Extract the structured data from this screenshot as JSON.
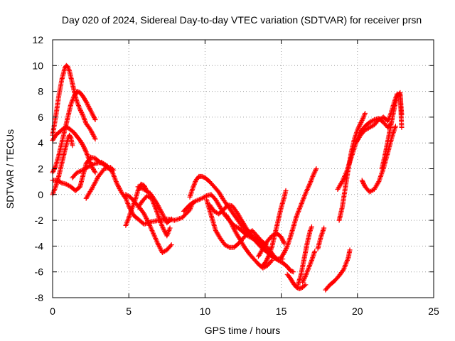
{
  "chart_data": {
    "type": "scatter",
    "title": "Day 020 of 2024, Sidereal Day-to-day VTEC variation (SDTVAR) for receiver prsn",
    "xlabel": "GPS time / hours",
    "ylabel": "SDTVAR / TECUs",
    "xlim": [
      0,
      25
    ],
    "ylim": [
      -8,
      12
    ],
    "x_ticks": [
      0,
      5,
      10,
      15,
      20,
      25
    ],
    "y_ticks": [
      -8,
      -6,
      -4,
      -2,
      0,
      2,
      4,
      6,
      8,
      10,
      12
    ],
    "grid": true,
    "marker": "+",
    "color": "#ff0000",
    "series": [
      {
        "name": "trace-1",
        "x": [
          0.0,
          0.2,
          0.4,
          0.6,
          0.8,
          0.9,
          1.0,
          1.1,
          1.2,
          1.3,
          1.4,
          1.5,
          1.6,
          1.7,
          1.8,
          2.0,
          2.2,
          2.5,
          2.8
        ],
        "y": [
          4.6,
          6.0,
          7.6,
          8.9,
          9.8,
          10.0,
          9.9,
          9.6,
          9.1,
          8.6,
          8.1,
          7.6,
          7.2,
          6.9,
          6.6,
          6.1,
          5.5,
          5.0,
          4.3
        ]
      },
      {
        "name": "trace-2",
        "x": [
          0.0,
          0.2,
          0.4,
          0.6,
          0.8,
          1.0,
          1.2,
          1.4,
          1.6,
          1.8,
          2.0,
          2.2,
          2.4,
          2.6,
          2.8
        ],
        "y": [
          4.2,
          4.6,
          4.8,
          5.0,
          5.2,
          5.2,
          5.0,
          4.8,
          4.5,
          4.2,
          3.8,
          3.3,
          2.7,
          2.1,
          1.7
        ]
      },
      {
        "name": "trace-3",
        "x": [
          0.0,
          0.2,
          0.4,
          0.6,
          0.8,
          1.0,
          1.2,
          1.4,
          1.6,
          1.8,
          2.0,
          2.2,
          2.5,
          2.8
        ],
        "y": [
          1.7,
          2.2,
          3.0,
          4.0,
          5.0,
          6.0,
          7.0,
          7.6,
          8.0,
          7.9,
          7.6,
          7.2,
          6.5,
          5.8
        ]
      },
      {
        "name": "trace-4",
        "x": [
          0.0,
          0.2,
          0.4,
          0.6,
          0.8,
          1.0,
          1.1,
          1.2,
          1.3
        ],
        "y": [
          0.0,
          0.6,
          1.4,
          2.4,
          3.4,
          4.3,
          4.6,
          4.4,
          3.8
        ]
      },
      {
        "name": "trace-5",
        "x": [
          0.0,
          0.3,
          0.6,
          0.9,
          1.2,
          1.5,
          1.8,
          2.0,
          2.2,
          2.5,
          2.8,
          3.1,
          3.4,
          3.7,
          3.9
        ],
        "y": [
          1.1,
          1.1,
          0.9,
          0.8,
          0.6,
          0.3,
          0.6,
          1.5,
          2.4,
          2.9,
          2.8,
          2.5,
          2.3,
          2.0,
          1.8
        ]
      },
      {
        "name": "trace-6",
        "x": [
          1.3,
          1.6,
          2.0,
          2.4,
          2.8,
          3.2,
          3.6,
          3.9
        ],
        "y": [
          1.3,
          1.7,
          1.9,
          2.2,
          2.4,
          2.5,
          2.2,
          1.8
        ]
      },
      {
        "name": "trace-7",
        "x": [
          2.2,
          2.6,
          3.0,
          3.4,
          3.8,
          4.0
        ],
        "y": [
          -0.3,
          0.5,
          1.4,
          2.0,
          2.1,
          1.9
        ]
      },
      {
        "name": "trace-8",
        "x": [
          3.9,
          4.2,
          4.5,
          4.8,
          5.0,
          5.3,
          5.6,
          6.0,
          6.5,
          7.0,
          7.5,
          8.0,
          8.5,
          9.0,
          9.2
        ],
        "y": [
          1.8,
          0.9,
          0.2,
          -0.3,
          -0.9,
          -1.6,
          -1.9,
          -2.3,
          -2.1,
          -2.0,
          -1.9,
          -2.0,
          -1.8,
          -1.2,
          -0.6
        ]
      },
      {
        "name": "trace-9",
        "x": [
          4.8,
          5.0,
          5.2,
          5.4,
          5.6,
          5.8,
          6.0,
          6.2
        ],
        "y": [
          -2.4,
          -1.8,
          -1.1,
          -0.5,
          0.3,
          0.8,
          0.7,
          0.2
        ]
      },
      {
        "name": "trace-10",
        "x": [
          4.8,
          5.1,
          5.4,
          5.7,
          6.0,
          6.3,
          6.6,
          6.9,
          7.2,
          7.5,
          7.8
        ],
        "y": [
          0.0,
          -0.2,
          -0.6,
          -1.0,
          -1.5,
          -2.2,
          -3.0,
          -3.8,
          -4.5,
          -4.3,
          -3.9
        ]
      },
      {
        "name": "trace-11",
        "x": [
          5.6,
          6.0,
          6.4,
          6.8,
          7.2,
          7.5,
          7.8
        ],
        "y": [
          0.6,
          0.4,
          0.1,
          -0.6,
          -1.5,
          -2.2,
          -1.9
        ]
      },
      {
        "name": "trace-12",
        "x": [
          5.6,
          5.9,
          6.2,
          6.5,
          6.8,
          7.2,
          7.5,
          7.7
        ],
        "y": [
          -1.0,
          -0.5,
          -0.1,
          -0.3,
          -1.2,
          -2.5,
          -3.2,
          -2.6
        ]
      },
      {
        "name": "trace-13",
        "x": [
          9.0,
          9.2,
          9.4,
          9.6,
          9.8,
          10.0,
          10.3,
          10.6,
          10.9,
          11.2,
          11.5,
          11.8,
          12.1,
          12.4,
          12.7,
          13.0,
          13.3,
          13.6,
          14.0,
          14.4,
          14.8,
          15.1,
          15.4,
          15.6,
          15.8
        ],
        "y": [
          -0.2,
          0.5,
          1.1,
          1.4,
          1.4,
          1.3,
          1.0,
          0.6,
          0.2,
          -0.4,
          -0.9,
          -1.4,
          -1.9,
          -2.4,
          -2.8,
          -3.2,
          -3.4,
          -3.9,
          -4.4,
          -4.8,
          -5.1,
          -5.3,
          -5.6,
          -5.9,
          -6.0
        ]
      },
      {
        "name": "trace-14",
        "x": [
          8.6,
          9.0,
          9.4,
          9.8,
          10.1,
          10.4,
          10.7,
          11.0,
          11.3,
          11.6,
          11.9,
          12.2,
          12.5,
          12.8,
          13.1,
          13.4,
          13.7,
          14.0,
          14.3,
          14.6
        ],
        "y": [
          -1.3,
          -0.8,
          -0.5,
          -0.3,
          -0.1,
          0.0,
          -0.4,
          -1.0,
          -1.6,
          -2.0,
          -2.4,
          -2.6,
          -2.9,
          -3.2,
          -3.4,
          -3.6,
          -3.7,
          -4.0,
          -4.4,
          -4.9
        ]
      },
      {
        "name": "trace-15",
        "x": [
          10.1,
          10.3,
          10.5,
          10.7,
          11.0,
          11.3,
          11.6,
          11.9,
          12.2,
          12.5,
          12.8,
          13.1,
          13.4,
          13.7,
          14.0
        ],
        "y": [
          -0.4,
          -1.2,
          -2.0,
          -2.8,
          -3.4,
          -3.9,
          -4.1,
          -4.1,
          -3.8,
          -3.4,
          -3.0,
          -2.8,
          -3.2,
          -3.6,
          -3.9
        ]
      },
      {
        "name": "trace-16",
        "x": [
          10.3,
          10.6,
          10.9,
          11.2,
          11.5,
          11.8,
          12.1,
          12.4,
          12.7,
          13.0,
          13.3,
          13.6,
          14.0,
          14.4,
          14.8,
          15.1
        ],
        "y": [
          -0.8,
          -1.3,
          -1.5,
          -1.2,
          -0.8,
          -0.9,
          -1.4,
          -2.0,
          -2.6,
          -3.1,
          -3.6,
          -4.0,
          -4.4,
          -4.8,
          -5.0,
          -5.0
        ]
      },
      {
        "name": "trace-17",
        "x": [
          11.4,
          11.7,
          12.0,
          12.3,
          12.6,
          12.9,
          13.2,
          13.5,
          13.8,
          14.1,
          14.4
        ],
        "y": [
          -1.6,
          -2.2,
          -2.9,
          -3.5,
          -4.1,
          -4.6,
          -5.0,
          -5.4,
          -5.7,
          -5.5,
          -5.1
        ]
      },
      {
        "name": "trace-18",
        "x": [
          13.8,
          14.0,
          14.2,
          14.4,
          14.6,
          14.8,
          15.0,
          15.2,
          15.3
        ],
        "y": [
          -5.5,
          -5.2,
          -4.7,
          -4.0,
          -3.0,
          -2.0,
          -1.0,
          -0.2,
          0.3
        ]
      },
      {
        "name": "trace-19",
        "x": [
          13.5,
          13.8,
          14.1,
          14.4,
          14.7,
          15.0,
          15.2
        ],
        "y": [
          -4.8,
          -4.2,
          -3.6,
          -3.2,
          -3.0,
          -3.3,
          -3.8
        ]
      },
      {
        "name": "trace-20",
        "x": [
          15.0,
          15.2,
          15.4,
          15.6,
          15.8,
          16.0,
          16.3,
          16.6,
          16.9,
          17.1,
          17.3
        ],
        "y": [
          -4.9,
          -4.5,
          -4.0,
          -3.3,
          -2.5,
          -1.7,
          -0.8,
          0.1,
          0.9,
          1.5,
          2.0
        ]
      },
      {
        "name": "trace-21",
        "x": [
          15.4,
          15.6,
          15.8,
          16.0,
          16.2,
          16.4,
          16.6
        ],
        "y": [
          -6.2,
          -6.5,
          -6.9,
          -7.2,
          -7.3,
          -7.2,
          -7.0
        ]
      },
      {
        "name": "trace-22",
        "x": [
          16.4,
          16.6,
          16.8,
          17.0,
          17.2
        ],
        "y": [
          -6.8,
          -6.3,
          -5.7,
          -5.1,
          -4.4
        ]
      },
      {
        "name": "trace-23",
        "x": [
          16.1,
          16.3,
          16.5,
          16.7,
          16.9,
          17.0
        ],
        "y": [
          -7.0,
          -6.2,
          -5.0,
          -3.8,
          -2.8,
          -2.5
        ]
      },
      {
        "name": "trace-24",
        "x": [
          17.4,
          17.6,
          17.8
        ],
        "y": [
          -4.2,
          -3.3,
          -2.6
        ]
      },
      {
        "name": "trace-25",
        "x": [
          17.9,
          18.2,
          18.5,
          18.8,
          19.1,
          19.4,
          19.5
        ],
        "y": [
          -7.4,
          -7.0,
          -6.7,
          -6.3,
          -5.8,
          -4.9,
          -4.3
        ]
      },
      {
        "name": "trace-26",
        "x": [
          18.8,
          19.0,
          19.2,
          19.4,
          19.6,
          19.8,
          20.0,
          20.2,
          20.4,
          20.5
        ],
        "y": [
          -2.0,
          -1.0,
          0.5,
          2.0,
          3.3,
          4.3,
          5.0,
          5.5,
          6.0,
          6.3
        ]
      },
      {
        "name": "trace-27",
        "x": [
          18.7,
          19.0,
          19.3,
          19.6,
          19.9,
          20.2,
          20.5,
          20.8,
          21.1,
          21.4,
          21.7,
          22.0,
          22.2
        ],
        "y": [
          0.4,
          1.0,
          1.8,
          2.9,
          4.0,
          4.9,
          5.3,
          5.6,
          5.8,
          5.9,
          5.6,
          5.2,
          5.5
        ]
      },
      {
        "name": "trace-28",
        "x": [
          20.3,
          20.5,
          20.8,
          21.1,
          21.4,
          21.7,
          22.0,
          22.3,
          22.5
        ],
        "y": [
          1.1,
          0.6,
          0.2,
          0.4,
          1.0,
          2.0,
          3.3,
          4.6,
          5.3
        ]
      },
      {
        "name": "trace-29",
        "x": [
          19.9,
          20.2,
          20.5,
          20.8,
          21.1,
          21.4,
          21.7,
          22.0,
          22.2,
          22.4,
          22.6,
          22.8,
          22.9
        ],
        "y": [
          4.0,
          4.6,
          5.0,
          5.2,
          5.4,
          5.8,
          6.0,
          5.7,
          6.3,
          7.1,
          7.8,
          7.7,
          6.2
        ]
      },
      {
        "name": "trace-30",
        "x": [
          21.6,
          21.8,
          22.0,
          22.2,
          22.4,
          22.6,
          22.8,
          22.9
        ],
        "y": [
          2.0,
          3.0,
          4.2,
          5.4,
          6.6,
          7.6,
          7.9,
          5.2
        ]
      }
    ]
  }
}
